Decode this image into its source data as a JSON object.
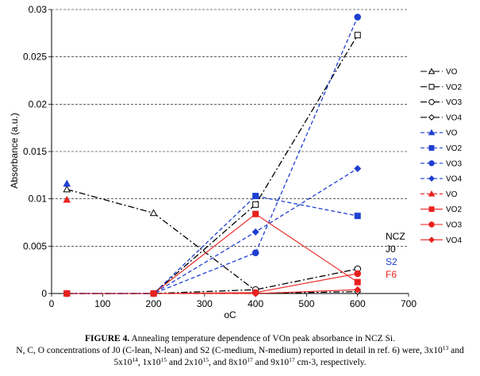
{
  "chart_data": {
    "type": "scatter",
    "xlabel": "oC",
    "ylabel": "Absorbance (a.u.)",
    "xlim": [
      0,
      700
    ],
    "ylim": [
      0,
      0.03
    ],
    "xticks": [
      "0",
      "100",
      "200",
      "300",
      "400",
      "500",
      "600",
      "700"
    ],
    "yticks": [
      "0",
      "0.005",
      "0.01",
      "0.015",
      "0.02",
      "0.025",
      "0.03"
    ],
    "grid": "horizontal",
    "legend_position": "right",
    "groups": [
      {
        "name": "NCZ",
        "color": "#000000"
      },
      {
        "name": "J0",
        "color": "#000000"
      },
      {
        "name": "S2",
        "color": "#1f3fd0"
      },
      {
        "name": "F6",
        "color": "#e8211e"
      }
    ],
    "series": [
      {
        "name": "VO",
        "group": "J0",
        "color": "#000000",
        "marker": "triangle-open",
        "line": "dashdot",
        "points": [
          [
            30,
            0.011
          ],
          [
            200,
            0.0085
          ],
          [
            400,
            0.0003
          ]
        ]
      },
      {
        "name": "VO2",
        "group": "J0",
        "color": "#000000",
        "marker": "square-open",
        "line": "dashdot",
        "points": [
          [
            30,
            0.0
          ],
          [
            200,
            0.0
          ],
          [
            400,
            0.0094
          ],
          [
            600,
            0.0273
          ]
        ]
      },
      {
        "name": "VO3",
        "group": "J0",
        "color": "#000000",
        "marker": "circle-open",
        "line": "dashdot",
        "points": [
          [
            30,
            0.0
          ],
          [
            200,
            0.0
          ],
          [
            400,
            0.0004
          ],
          [
            600,
            0.0026
          ]
        ]
      },
      {
        "name": "VO4",
        "group": "J0",
        "color": "#000000",
        "marker": "diamond-open",
        "line": "dashdot",
        "points": [
          [
            30,
            0.0
          ],
          [
            200,
            0.0
          ],
          [
            400,
            0.0
          ],
          [
            600,
            0.0002
          ]
        ]
      },
      {
        "name": "VO",
        "group": "S2",
        "color": "#1f3fd0",
        "marker": "triangle",
        "line": "none",
        "points": [
          [
            30,
            0.0116
          ]
        ]
      },
      {
        "name": "VO2",
        "group": "S2",
        "color": "#1f3fd0",
        "marker": "square",
        "line": "dashed",
        "points": [
          [
            30,
            0.0
          ],
          [
            200,
            0.0
          ],
          [
            400,
            0.0103
          ],
          [
            600,
            0.0082
          ]
        ]
      },
      {
        "name": "VO3",
        "group": "S2",
        "color": "#1f3fd0",
        "marker": "circle",
        "line": "dashed",
        "points": [
          [
            30,
            0.0
          ],
          [
            200,
            0.0
          ],
          [
            400,
            0.0043
          ],
          [
            600,
            0.0292
          ]
        ]
      },
      {
        "name": "VO4",
        "group": "S2",
        "color": "#1f3fd0",
        "marker": "diamond",
        "line": "dashed",
        "points": [
          [
            30,
            0.0
          ],
          [
            200,
            0.0
          ],
          [
            400,
            0.0065
          ],
          [
            600,
            0.0132
          ]
        ]
      },
      {
        "name": "VO",
        "group": "F6",
        "color": "#e8211e",
        "marker": "triangle",
        "line": "none",
        "points": [
          [
            30,
            0.0099
          ]
        ]
      },
      {
        "name": "VO2",
        "group": "F6",
        "color": "#e8211e",
        "marker": "square",
        "line": "solid",
        "points": [
          [
            30,
            0.0
          ],
          [
            200,
            0.0
          ],
          [
            400,
            0.0084
          ],
          [
            600,
            0.0012
          ]
        ]
      },
      {
        "name": "VO3",
        "group": "F6",
        "color": "#e8211e",
        "marker": "circle",
        "line": "solid",
        "points": [
          [
            30,
            0.0
          ],
          [
            200,
            0.0
          ],
          [
            400,
            0.0001
          ],
          [
            600,
            0.0021
          ]
        ]
      },
      {
        "name": "VO4",
        "group": "F6",
        "color": "#e8211e",
        "marker": "diamond",
        "line": "solid",
        "points": [
          [
            30,
            0.0
          ],
          [
            200,
            0.0
          ],
          [
            400,
            0.0
          ],
          [
            600,
            0.0004
          ]
        ]
      }
    ]
  },
  "caption": {
    "label": "FIGURE 4.",
    "title": "Annealing temperature dependence of VOn peak absorbance in NCZ Si.",
    "line2": "N, C, O concentrations of J0 (C-lean, N-lean) and S2 (C-medium, N-medium) reported in detail in ref. 6) were, 3x10",
    "exp_13": "13",
    "and_1": "and",
    "line3_a": "5x10",
    "exp_14": "14",
    "line3_b": ", 1x10",
    "exp_15a": "15",
    "line3_c": "and 2x10",
    "exp_15b": "15",
    "line3_d": ", and 8x10",
    "exp_17a": "17",
    "line3_e": "and 9x10",
    "exp_17b": "17",
    "line3_f": "cm-3, respectively."
  }
}
